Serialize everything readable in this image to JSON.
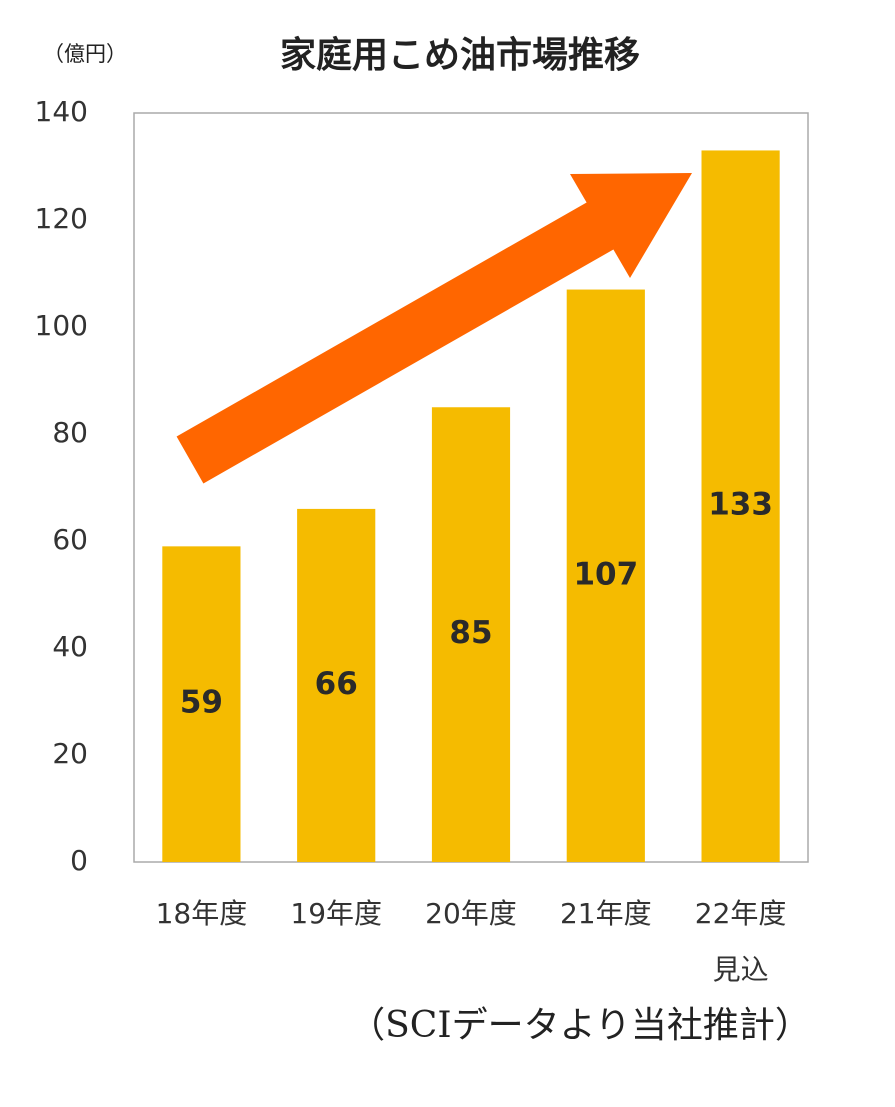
{
  "chart_data": {
    "type": "bar",
    "title": "家庭用こめ油市場推移",
    "y_unit": "（億円）",
    "categories": [
      "18年度",
      "19年度",
      "20年度",
      "21年度",
      "22年度\n見込"
    ],
    "values": [
      59,
      66,
      85,
      107,
      133
    ],
    "color": "#f5bb00",
    "ylim": [
      0,
      140
    ],
    "yticks": [
      0,
      20,
      40,
      60,
      80,
      100,
      120,
      140
    ],
    "grid": false,
    "note": "（SCIデータより当社推計）"
  }
}
